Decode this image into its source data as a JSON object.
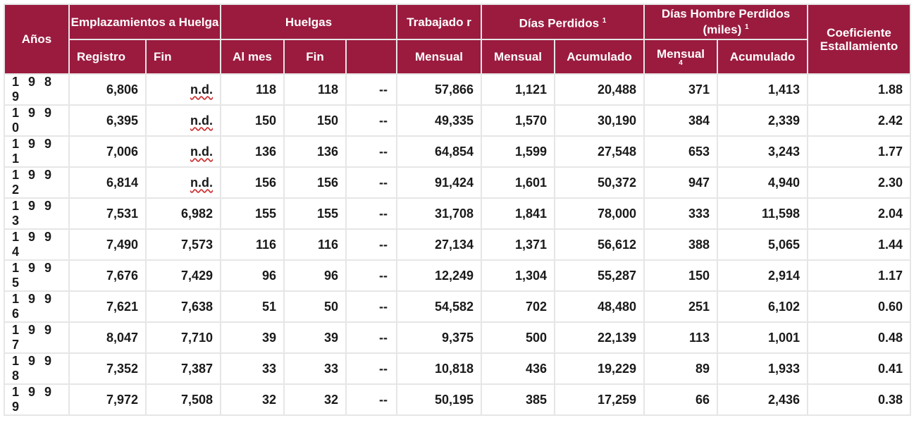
{
  "headers": {
    "anos": "Años",
    "emplazamientos": "Emplazamientos a Huelga",
    "huelgas": "Huelgas",
    "trabajador": "Trabajado r",
    "dias_perdidos": "Días Perdidos",
    "dias_perdidos_note": "1",
    "dias_hombre": "Días Hombre Perdidos (miles)",
    "dias_hombre_note": "1",
    "coeficiente": "Coeficiente Estallamiento",
    "registro": "Registro",
    "fin_emp": "Fin",
    "al_mes": "Al mes",
    "fin_huel": "Fin",
    "mensual_trab": "Mensual",
    "mensual_dias": "Mensual",
    "acumulado_dias": "Acumulado",
    "mensual_hombre": "Mensual",
    "mensual_hombre_note": "4",
    "acumulado_hombre": "Acumulado"
  },
  "rows": [
    {
      "year": "1 9 8 9",
      "registro": "6,806",
      "fin": "n.d.",
      "al_mes": "118",
      "huelgas_fin": "118",
      "extra": "--",
      "trabajador": "57,866",
      "dias_mensual": "1,121",
      "dias_acum": "20,488",
      "hombre_mensual": "371",
      "hombre_acum": "1,413",
      "coef": "1.88"
    },
    {
      "year": "1 9 9 0",
      "registro": "6,395",
      "fin": "n.d.",
      "al_mes": "150",
      "huelgas_fin": "150",
      "extra": "--",
      "trabajador": "49,335",
      "dias_mensual": "1,570",
      "dias_acum": "30,190",
      "hombre_mensual": "384",
      "hombre_acum": "2,339",
      "coef": "2.42"
    },
    {
      "year": "1 9 9 1",
      "registro": "7,006",
      "fin": "n.d.",
      "al_mes": "136",
      "huelgas_fin": "136",
      "extra": "--",
      "trabajador": "64,854",
      "dias_mensual": "1,599",
      "dias_acum": "27,548",
      "hombre_mensual": "653",
      "hombre_acum": "3,243",
      "coef": "1.77"
    },
    {
      "year": "1 9 9 2",
      "registro": "6,814",
      "fin": "n.d.",
      "al_mes": "156",
      "huelgas_fin": "156",
      "extra": "--",
      "trabajador": "91,424",
      "dias_mensual": "1,601",
      "dias_acum": "50,372",
      "hombre_mensual": "947",
      "hombre_acum": "4,940",
      "coef": "2.30"
    },
    {
      "year": "1 9 9 3",
      "registro": "7,531",
      "fin": "6,982",
      "al_mes": "155",
      "huelgas_fin": "155",
      "extra": "--",
      "trabajador": "31,708",
      "dias_mensual": "1,841",
      "dias_acum": "78,000",
      "hombre_mensual": "333",
      "hombre_acum": "11,598",
      "coef": "2.04"
    },
    {
      "year": "1 9 9 4",
      "registro": "7,490",
      "fin": "7,573",
      "al_mes": "116",
      "huelgas_fin": "116",
      "extra": "--",
      "trabajador": "27,134",
      "dias_mensual": "1,371",
      "dias_acum": "56,612",
      "hombre_mensual": "388",
      "hombre_acum": "5,065",
      "coef": "1.44"
    },
    {
      "year": "1 9 9 5",
      "registro": "7,676",
      "fin": "7,429",
      "al_mes": "96",
      "huelgas_fin": "96",
      "extra": "--",
      "trabajador": "12,249",
      "dias_mensual": "1,304",
      "dias_acum": "55,287",
      "hombre_mensual": "150",
      "hombre_acum": "2,914",
      "coef": "1.17"
    },
    {
      "year": "1 9 9 6",
      "registro": "7,621",
      "fin": "7,638",
      "al_mes": "51",
      "huelgas_fin": "50",
      "extra": "--",
      "trabajador": "54,582",
      "dias_mensual": "702",
      "dias_acum": "48,480",
      "hombre_mensual": "251",
      "hombre_acum": "6,102",
      "coef": "0.60"
    },
    {
      "year": "1 9 9 7",
      "registro": "8,047",
      "fin": "7,710",
      "al_mes": "39",
      "huelgas_fin": "39",
      "extra": "--",
      "trabajador": "9,375",
      "dias_mensual": "500",
      "dias_acum": "22,139",
      "hombre_mensual": "113",
      "hombre_acum": "1,001",
      "coef": "0.48"
    },
    {
      "year": "1 9 9 8",
      "registro": "7,352",
      "fin": "7,387",
      "al_mes": "33",
      "huelgas_fin": "33",
      "extra": "--",
      "trabajador": "10,818",
      "dias_mensual": "436",
      "dias_acum": "19,229",
      "hombre_mensual": "89",
      "hombre_acum": "1,933",
      "coef": "0.41"
    },
    {
      "year": "1 9 9 9",
      "registro": "7,972",
      "fin": "7,508",
      "al_mes": "32",
      "huelgas_fin": "32",
      "extra": "--",
      "trabajador": "50,195",
      "dias_mensual": "385",
      "dias_acum": "17,259",
      "hombre_mensual": "66",
      "hombre_acum": "2,436",
      "coef": "0.38"
    }
  ],
  "colors": {
    "header_bg": "#9b1b3f",
    "header_text": "#ffffff",
    "grid": "#e6e6e6"
  }
}
